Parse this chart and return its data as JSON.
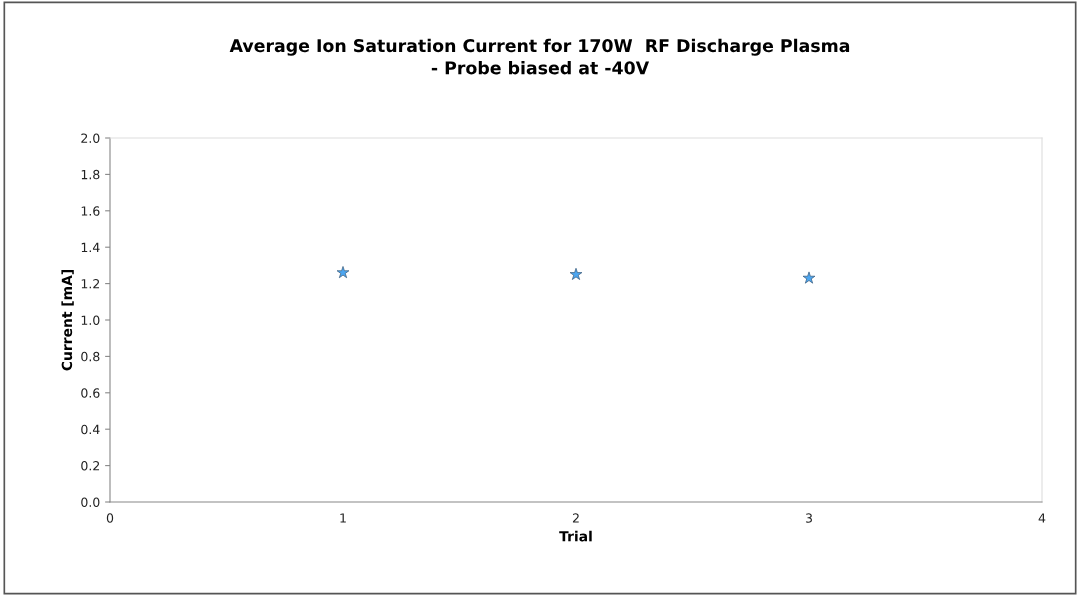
{
  "chart_data": {
    "type": "scatter",
    "title": "Average Ion Saturation Current for 170W  RF Discharge Plasma\n- Probe biased at -40V",
    "xlabel": "Trial",
    "ylabel": "Current [mA]",
    "x": [
      1,
      2,
      3
    ],
    "values": [
      1.26,
      1.25,
      1.23
    ],
    "color": "#4da6f0",
    "marker": "star",
    "xlim": [
      0,
      4
    ],
    "xticks": [
      0,
      1,
      2,
      3,
      4
    ],
    "ylim": [
      0,
      2.0
    ],
    "yticks": [
      {
        "value": 0,
        "label": "0.0"
      },
      {
        "value": 0.2,
        "label": "0.2"
      },
      {
        "value": 0.4,
        "label": "0.4"
      },
      {
        "value": 0.6,
        "label": "0.6"
      },
      {
        "value": 0.8,
        "label": "0.8"
      },
      {
        "value": 1.0,
        "label": "1.0"
      },
      {
        "value": 1.2,
        "label": "1.2"
      },
      {
        "value": 1.4,
        "label": "1.4"
      },
      {
        "value": 1.6,
        "label": "1.6"
      },
      {
        "value": 1.8,
        "label": "1.8"
      },
      {
        "value": 2.0,
        "label": "2.0"
      }
    ],
    "grid": false,
    "legend": false
  }
}
